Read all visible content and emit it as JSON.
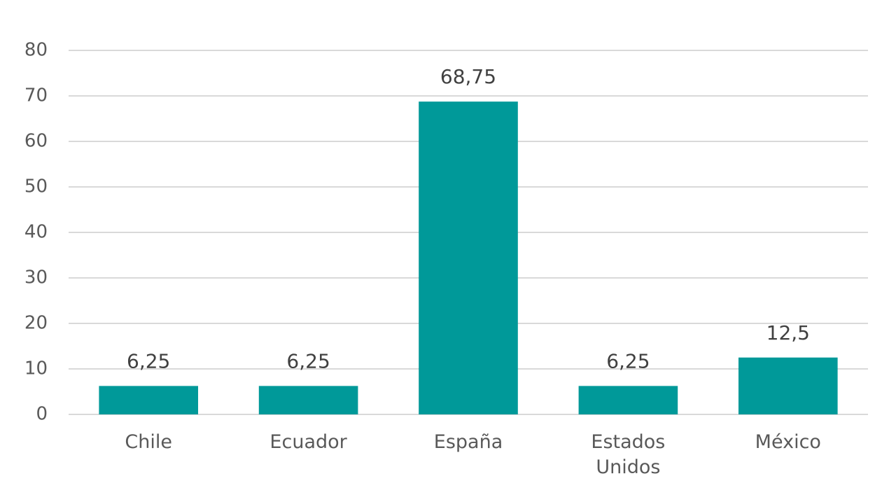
{
  "chart_data": {
    "type": "bar",
    "categories": [
      "Chile",
      "Ecuador",
      "España",
      "Estados Unidos",
      "México"
    ],
    "values": [
      6.25,
      6.25,
      68.75,
      6.25,
      12.5
    ],
    "value_labels": [
      "6,25",
      "6,25",
      "68,75",
      "6,25",
      "12,5"
    ],
    "color": "#009999",
    "ylim": [
      0,
      80
    ],
    "yticks": [
      0,
      10,
      20,
      30,
      40,
      50,
      60,
      70,
      80
    ],
    "grid": true
  }
}
